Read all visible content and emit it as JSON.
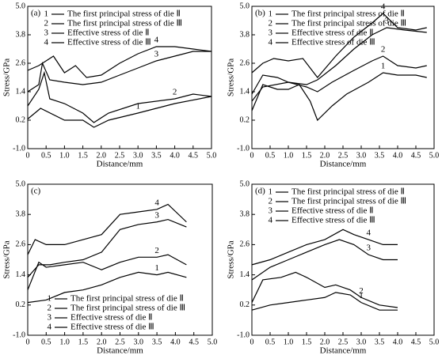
{
  "chart_data": [
    {
      "type": "line",
      "panel": "(a)",
      "ylabel": "Stress/GPa",
      "xlabel": "Distance/mm",
      "color": "#000000",
      "legend": "upper left",
      "xlim": [
        0,
        5
      ],
      "ylim": [
        -1,
        5
      ],
      "xticks": [
        0,
        0.5,
        {
          "value": 1,
          "label": "1.0"
        },
        1.5,
        {
          "value": 2,
          "label": "2.0"
        },
        2.5,
        {
          "value": 3,
          "label": "3.0"
        },
        3.5,
        {
          "value": 4,
          "label": "4.0"
        },
        4.5,
        {
          "value": 5,
          "label": "5.0"
        }
      ],
      "yticks": [
        {
          "value": -1,
          "label": "-1.0"
        },
        0.2,
        1.4,
        2.6,
        3.8,
        {
          "value": 5,
          "label": "5.0"
        }
      ],
      "series": [
        {
          "name": "The first principal stress of die Ⅱ",
          "label": "1",
          "x": [
            0,
            0.35,
            1.0,
            1.5,
            1.8,
            2.2,
            3.0,
            4.0,
            5.0
          ],
          "values": [
            0.25,
            0.7,
            0.2,
            0.2,
            -0.1,
            0.2,
            0.5,
            0.9,
            1.2
          ]
        },
        {
          "name": "The first principal stress of die Ⅲ",
          "label": "2",
          "x": [
            0,
            0.3,
            0.45,
            0.6,
            1.0,
            1.5,
            1.8,
            2.2,
            3.0,
            4.0,
            4.5,
            5.0
          ],
          "values": [
            0.8,
            1.5,
            2.2,
            1.1,
            0.9,
            0.5,
            0.1,
            0.5,
            0.9,
            1.1,
            1.3,
            1.2
          ]
        },
        {
          "name": "Effective stress of die Ⅱ",
          "label": "3",
          "x": [
            0,
            0.3,
            0.4,
            0.6,
            1.0,
            1.5,
            2.0,
            2.5,
            3.0,
            3.5,
            4.0,
            4.5,
            5.0
          ],
          "values": [
            1.4,
            1.7,
            2.6,
            1.9,
            1.8,
            1.7,
            1.8,
            2.1,
            2.4,
            2.7,
            2.9,
            3.1,
            3.1
          ]
        },
        {
          "name": "Effective stress of die Ⅲ",
          "label": "4",
          "x": [
            0,
            0.3,
            0.7,
            1.0,
            1.3,
            1.6,
            2.0,
            2.5,
            3.0,
            3.5,
            4.0,
            4.5,
            5.0
          ],
          "values": [
            2.3,
            2.5,
            2.9,
            2.2,
            2.5,
            2.0,
            2.1,
            2.6,
            3.0,
            3.3,
            3.3,
            3.2,
            3.1
          ]
        }
      ]
    },
    {
      "type": "line",
      "panel": "(b)",
      "ylabel": "Stress/GPa",
      "xlabel": "Distance/mm",
      "color": "#000000",
      "legend": "upper left",
      "xlim": [
        0,
        5
      ],
      "ylim": [
        -1,
        5
      ],
      "xticks": [
        0,
        0.5,
        {
          "value": 1,
          "label": "1.0"
        },
        1.5,
        {
          "value": 2,
          "label": "2.0"
        },
        2.5,
        {
          "value": 3,
          "label": "3.0"
        },
        3.5,
        {
          "value": 4,
          "label": "4.0"
        },
        4.5,
        {
          "value": 5,
          "label": "5.0"
        }
      ],
      "yticks": [
        {
          "value": -1,
          "label": "-1.0"
        },
        0.2,
        1.4,
        2.6,
        3.8,
        {
          "value": 5,
          "label": "5.0"
        }
      ],
      "series": [
        {
          "name": "The first principal stress of die Ⅱ",
          "label": "1",
          "x": [
            0,
            0.3,
            0.7,
            1.0,
            1.3,
            1.6,
            1.8,
            2.2,
            2.6,
            3.2,
            3.6,
            4.0,
            4.5,
            4.8
          ],
          "values": [
            0.6,
            1.7,
            1.5,
            1.5,
            1.7,
            1.0,
            0.2,
            0.8,
            1.3,
            1.8,
            2.2,
            2.1,
            2.1,
            2.0
          ]
        },
        {
          "name": "The first principal stress of die Ⅲ",
          "label": "2",
          "x": [
            0,
            0.3,
            0.7,
            1.0,
            1.5,
            1.8,
            2.2,
            2.8,
            3.3,
            3.6,
            4.0,
            4.5,
            4.8
          ],
          "values": [
            1.3,
            2.1,
            2.0,
            1.8,
            1.6,
            1.4,
            1.8,
            2.3,
            2.7,
            2.9,
            2.5,
            2.4,
            2.5
          ]
        },
        {
          "name": "Effective stress of die Ⅱ",
          "label": "3",
          "x": [
            0,
            0.3,
            1.0,
            1.5,
            1.8,
            2.3,
            2.8,
            3.3,
            3.7,
            4.2,
            4.8
          ],
          "values": [
            1.0,
            1.6,
            1.8,
            1.7,
            1.9,
            2.5,
            3.2,
            3.8,
            4.1,
            4.0,
            3.9
          ]
        },
        {
          "name": "Effective stress of die Ⅲ",
          "label": "4",
          "x": [
            0,
            0.3,
            0.6,
            1.0,
            1.4,
            1.8,
            2.3,
            2.8,
            3.3,
            3.6,
            4.0,
            4.5,
            4.8
          ],
          "values": [
            2.2,
            2.6,
            2.8,
            2.7,
            2.8,
            2.0,
            2.9,
            3.7,
            4.3,
            4.7,
            4.1,
            4.0,
            4.1
          ]
        }
      ]
    },
    {
      "type": "line",
      "panel": "(c)",
      "ylabel": "Stress/GPa",
      "xlabel": "Distance/mm",
      "color": "#000000",
      "legend": "lower left",
      "xlim": [
        0,
        5
      ],
      "ylim": [
        -1,
        5
      ],
      "xticks": [
        0,
        0.5,
        {
          "value": 1,
          "label": "1.0"
        },
        1.5,
        {
          "value": 2,
          "label": "2.0"
        },
        2.5,
        {
          "value": 3,
          "label": "3.0"
        },
        3.5,
        {
          "value": 4,
          "label": "4.0"
        },
        4.5,
        {
          "value": 5,
          "label": "5.0"
        }
      ],
      "yticks": [
        {
          "value": -1,
          "label": "-1.0"
        },
        0.2,
        1.4,
        2.6,
        3.8,
        {
          "value": 5,
          "label": "5.0"
        }
      ],
      "series": [
        {
          "name": "The first principal stress of die Ⅱ",
          "label": "1",
          "x": [
            0,
            0.5,
            1.0,
            1.5,
            2.0,
            2.5,
            3.0,
            3.5,
            3.8,
            4.3
          ],
          "values": [
            0.3,
            0.4,
            0.7,
            0.8,
            1.0,
            1.3,
            1.5,
            1.4,
            1.5,
            1.3
          ]
        },
        {
          "name": "The first principal stress of die Ⅲ",
          "label": "2",
          "x": [
            0,
            0.3,
            0.5,
            1.0,
            1.5,
            2.0,
            2.5,
            3.0,
            3.5,
            3.8,
            4.3
          ],
          "values": [
            0.8,
            1.9,
            1.7,
            1.8,
            1.9,
            1.6,
            1.9,
            2.1,
            2.1,
            2.2,
            1.8
          ]
        },
        {
          "name": "Effective stress of die Ⅱ",
          "label": "3",
          "x": [
            0,
            0.3,
            0.6,
            1.0,
            1.5,
            2.0,
            2.5,
            3.0,
            3.5,
            3.8,
            4.3
          ],
          "values": [
            1.3,
            1.8,
            1.8,
            1.9,
            2.0,
            2.3,
            3.2,
            3.4,
            3.5,
            3.6,
            3.3
          ]
        },
        {
          "name": "Effective stress of die Ⅲ",
          "label": "4",
          "x": [
            0,
            0.2,
            0.5,
            1.0,
            1.5,
            2.0,
            2.5,
            3.0,
            3.5,
            3.8,
            4.3
          ],
          "values": [
            2.2,
            2.8,
            2.6,
            2.6,
            2.8,
            3.0,
            3.8,
            3.9,
            4.0,
            4.2,
            3.5
          ]
        }
      ]
    },
    {
      "type": "line",
      "panel": "(d)",
      "ylabel": "Stress/GPa",
      "xlabel": "Distance/mm",
      "color": "#000000",
      "legend": "upper left",
      "xlim": [
        0,
        5
      ],
      "ylim": [
        -1,
        5
      ],
      "xticks": [
        0,
        0.5,
        {
          "value": 1,
          "label": "1.0"
        },
        1.5,
        {
          "value": 2,
          "label": "2.0"
        },
        2.5,
        {
          "value": 3,
          "label": "3.0"
        },
        3.5,
        {
          "value": 4,
          "label": "4.0"
        },
        4.5,
        {
          "value": 5,
          "label": "5.0"
        }
      ],
      "yticks": [
        {
          "value": -1,
          "label": "-1.0"
        },
        0.2,
        1.4,
        2.6,
        3.8,
        {
          "value": 5,
          "label": "5.0"
        }
      ],
      "series": [
        {
          "name": "The first principal stress of die Ⅱ",
          "label": "1",
          "x": [
            0,
            0.5,
            1.0,
            1.5,
            2.0,
            2.3,
            2.7,
            3.0,
            3.5,
            4.0
          ],
          "values": [
            0.0,
            0.2,
            0.3,
            0.4,
            0.5,
            0.7,
            0.6,
            0.3,
            0.0,
            0.0
          ]
        },
        {
          "name": "The first principal stress of die Ⅲ",
          "label": "2",
          "x": [
            0,
            0.3,
            0.8,
            1.2,
            1.5,
            2.0,
            2.3,
            2.7,
            3.0,
            3.5,
            4.0
          ],
          "values": [
            0.3,
            1.2,
            1.3,
            1.5,
            1.3,
            0.9,
            1.0,
            0.8,
            0.5,
            0.2,
            0.1
          ]
        },
        {
          "name": "Effective stress of die Ⅱ",
          "label": "3",
          "x": [
            0,
            0.5,
            1.0,
            1.5,
            2.0,
            2.4,
            2.8,
            3.2,
            3.6,
            4.0
          ],
          "values": [
            1.2,
            1.7,
            2.0,
            2.3,
            2.6,
            2.8,
            2.6,
            2.2,
            2.0,
            2.0
          ]
        },
        {
          "name": "Effective stress of die Ⅲ",
          "label": "4",
          "x": [
            0,
            0.5,
            1.0,
            1.5,
            2.0,
            2.5,
            2.8,
            3.2,
            3.6,
            4.0
          ],
          "values": [
            1.8,
            2.0,
            2.3,
            2.6,
            2.8,
            3.2,
            3.0,
            2.8,
            2.6,
            2.6
          ]
        }
      ]
    }
  ]
}
